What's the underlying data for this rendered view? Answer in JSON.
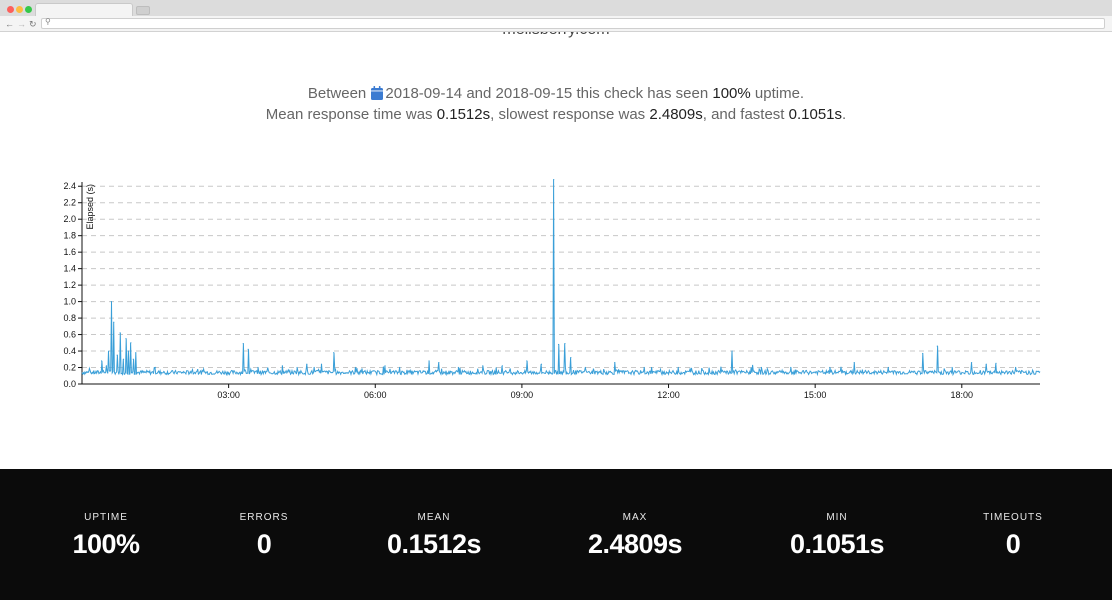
{
  "site": {
    "title": "mellsberry.com"
  },
  "summary": {
    "between": "Between",
    "date_start": "2018-09-14",
    "and": "and",
    "date_end": "2018-09-15",
    "seen_text": "this check has seen",
    "uptime": "100%",
    "uptime_suffix": "uptime.",
    "mean_prefix": "Mean response time was",
    "mean": "0.1512s",
    "slowest_prefix": ", slowest response was",
    "max": "2.4809s",
    "fastest_prefix": ", and fastest",
    "min": "0.1051s",
    "end": "."
  },
  "colors": {
    "accent": "#3a9fd8",
    "calendar_icon": "#3b7bd1",
    "stats_background": "#0b0b0b"
  },
  "icons": {
    "calendar": "calendar-icon"
  },
  "chart_data": {
    "type": "line",
    "ylabel": "Elapsed (s)",
    "xlabel": "",
    "ylim": [
      0,
      2.5
    ],
    "x_domain_hours": [
      0,
      19.6
    ],
    "y_ticks": [
      0.0,
      0.2,
      0.4,
      0.6,
      0.8,
      1.0,
      1.2,
      1.4,
      1.6,
      1.8,
      2.0,
      2.2,
      2.4
    ],
    "y_tick_labels": [
      "0.0",
      "0.2",
      "0.4",
      "0.6",
      "0.8",
      "1.0",
      "1.2",
      "1.4",
      "1.6",
      "1.8",
      "2.0",
      "2.2",
      "2.4"
    ],
    "x_ticks_hours": [
      3,
      6,
      9,
      12,
      15,
      18
    ],
    "x_tick_labels": [
      "03:00",
      "06:00",
      "09:00",
      "12:00",
      "15:00",
      "18:00"
    ],
    "grid": "horizontal dashed",
    "baseline": 0.14,
    "series": [
      {
        "color": "#3a9fd8",
        "spikes": [
          {
            "x": 0.4,
            "y": 0.28
          },
          {
            "x": 0.5,
            "y": 0.22
          },
          {
            "x": 0.55,
            "y": 0.4
          },
          {
            "x": 0.6,
            "y": 1.0
          },
          {
            "x": 0.65,
            "y": 0.75
          },
          {
            "x": 0.72,
            "y": 0.35
          },
          {
            "x": 0.78,
            "y": 0.62
          },
          {
            "x": 0.85,
            "y": 0.3
          },
          {
            "x": 0.9,
            "y": 0.55
          },
          {
            "x": 0.95,
            "y": 0.4
          },
          {
            "x": 1.0,
            "y": 0.5
          },
          {
            "x": 1.05,
            "y": 0.3
          },
          {
            "x": 1.1,
            "y": 0.38
          },
          {
            "x": 1.5,
            "y": 0.2
          },
          {
            "x": 3.3,
            "y": 0.49
          },
          {
            "x": 3.4,
            "y": 0.42
          },
          {
            "x": 3.6,
            "y": 0.2
          },
          {
            "x": 4.1,
            "y": 0.22
          },
          {
            "x": 4.4,
            "y": 0.2
          },
          {
            "x": 4.6,
            "y": 0.24
          },
          {
            "x": 4.75,
            "y": 0.2
          },
          {
            "x": 4.9,
            "y": 0.24
          },
          {
            "x": 5.15,
            "y": 0.38
          },
          {
            "x": 5.6,
            "y": 0.2
          },
          {
            "x": 6.2,
            "y": 0.22
          },
          {
            "x": 6.5,
            "y": 0.2
          },
          {
            "x": 7.1,
            "y": 0.28
          },
          {
            "x": 7.3,
            "y": 0.26
          },
          {
            "x": 7.7,
            "y": 0.2
          },
          {
            "x": 8.2,
            "y": 0.22
          },
          {
            "x": 8.6,
            "y": 0.22
          },
          {
            "x": 9.1,
            "y": 0.28
          },
          {
            "x": 9.4,
            "y": 0.24
          },
          {
            "x": 9.65,
            "y": 2.48
          },
          {
            "x": 9.75,
            "y": 0.48
          },
          {
            "x": 9.88,
            "y": 0.49
          },
          {
            "x": 10.0,
            "y": 0.32
          },
          {
            "x": 10.3,
            "y": 0.2
          },
          {
            "x": 10.9,
            "y": 0.26
          },
          {
            "x": 11.5,
            "y": 0.2
          },
          {
            "x": 12.2,
            "y": 0.2
          },
          {
            "x": 13.3,
            "y": 0.4
          },
          {
            "x": 13.9,
            "y": 0.2
          },
          {
            "x": 14.5,
            "y": 0.2
          },
          {
            "x": 15.3,
            "y": 0.2
          },
          {
            "x": 15.8,
            "y": 0.26
          },
          {
            "x": 16.5,
            "y": 0.2
          },
          {
            "x": 17.2,
            "y": 0.37
          },
          {
            "x": 17.5,
            "y": 0.46
          },
          {
            "x": 17.8,
            "y": 0.2
          },
          {
            "x": 18.2,
            "y": 0.26
          },
          {
            "x": 18.5,
            "y": 0.24
          },
          {
            "x": 18.7,
            "y": 0.25
          },
          {
            "x": 19.1,
            "y": 0.2
          }
        ]
      }
    ]
  },
  "stats": [
    {
      "label": "UPTIME",
      "value": "100%"
    },
    {
      "label": "ERRORS",
      "value": "0"
    },
    {
      "label": "MEAN",
      "value": "0.1512s"
    },
    {
      "label": "MAX",
      "value": "2.4809s"
    },
    {
      "label": "MIN",
      "value": "0.1051s"
    },
    {
      "label": "TIMEOUTS",
      "value": "0"
    }
  ]
}
